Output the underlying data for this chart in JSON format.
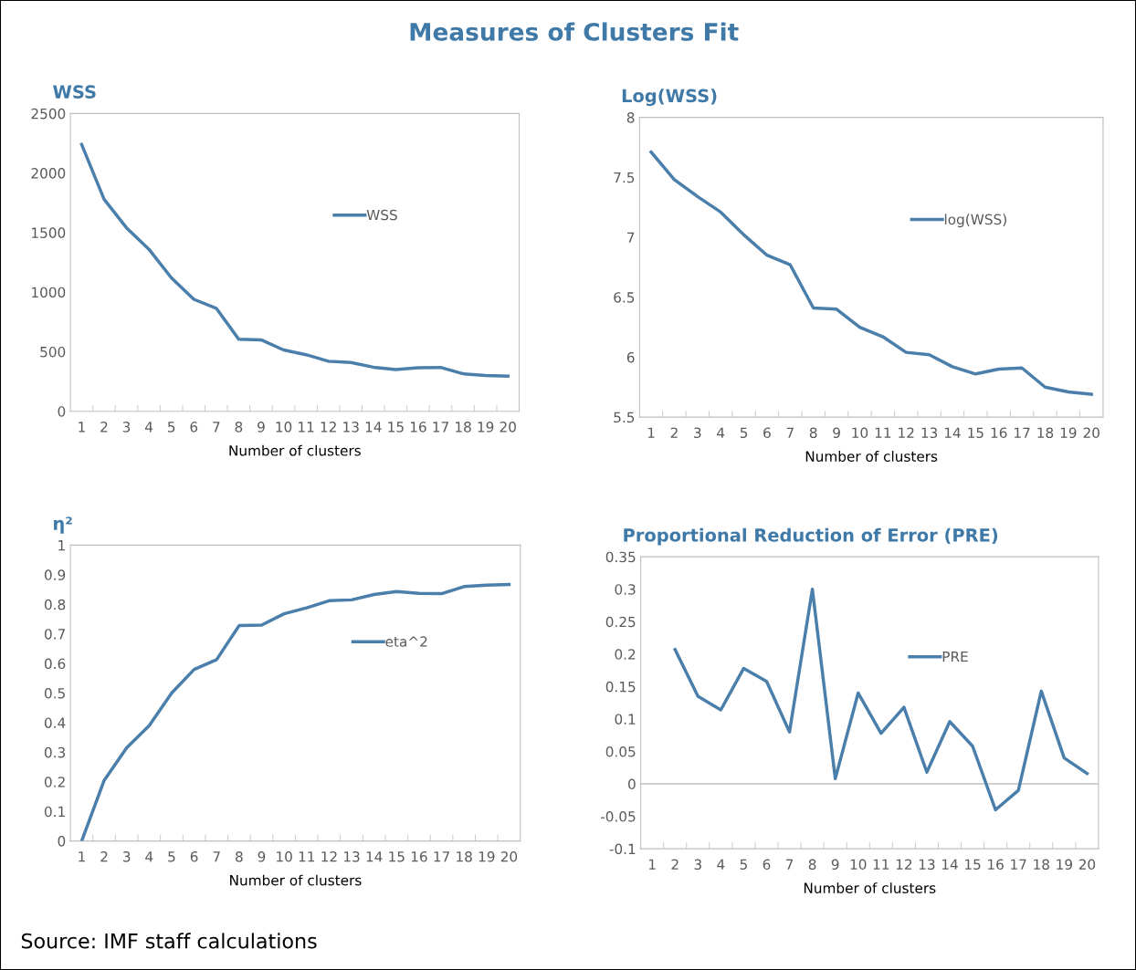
{
  "chart_data": [
    {
      "type": "other",
      "title": "Measures of Clusters Fit",
      "annotations": [
        "Source: IMF staff calculations"
      ]
    },
    {
      "type": "line",
      "title": "WSS",
      "xlabel": "Number of clusters",
      "categories": [
        "1",
        "2",
        "3",
        "4",
        "5",
        "6",
        "7",
        "8",
        "9",
        "10",
        "11",
        "12",
        "13",
        "14",
        "15",
        "16",
        "17",
        "18",
        "19",
        "20"
      ],
      "series": [
        {
          "name": "WSS",
          "color": "#4a7eab",
          "values": [
            2240,
            1780,
            1540,
            1360,
            1120,
            940,
            865,
            605,
            600,
            515,
            475,
            420,
            410,
            370,
            350,
            365,
            368,
            315,
            300,
            295
          ]
        }
      ],
      "ylim": [
        0,
        2500
      ],
      "yticks": [
        0,
        500,
        1000,
        1500,
        2000,
        2500
      ],
      "grid": false,
      "legend": "right",
      "marker": "none",
      "line_style": "solid"
    },
    {
      "type": "line",
      "title": "Log(WSS)",
      "xlabel": "Number of clusters",
      "categories": [
        "1",
        "2",
        "3",
        "4",
        "5",
        "6",
        "7",
        "8",
        "9",
        "10",
        "11",
        "12",
        "13",
        "14",
        "15",
        "16",
        "17",
        "18",
        "19",
        "20"
      ],
      "series": [
        {
          "name": "log(WSS)",
          "color": "#4a7eab",
          "values": [
            7.71,
            7.48,
            7.34,
            7.21,
            7.02,
            6.85,
            6.77,
            6.41,
            6.4,
            6.25,
            6.17,
            6.04,
            6.02,
            5.92,
            5.86,
            5.9,
            5.91,
            5.75,
            5.71,
            5.69
          ]
        }
      ],
      "ylim": [
        5.5,
        8
      ],
      "yticks": [
        5.5,
        6,
        6.5,
        7,
        7.5,
        8
      ],
      "grid": false,
      "legend": "right",
      "marker": "none",
      "line_style": "solid"
    },
    {
      "type": "line",
      "title": "η²",
      "xlabel": "Number of clusters",
      "categories": [
        "1",
        "2",
        "3",
        "4",
        "5",
        "6",
        "7",
        "8",
        "9",
        "10",
        "11",
        "12",
        "13",
        "14",
        "15",
        "16",
        "17",
        "18",
        "19",
        "20"
      ],
      "series": [
        {
          "name": "eta^2",
          "color": "#4a7eab",
          "values": [
            0,
            0.205,
            0.315,
            0.39,
            0.5,
            0.58,
            0.613,
            0.728,
            0.73,
            0.768,
            0.788,
            0.812,
            0.815,
            0.833,
            0.843,
            0.837,
            0.836,
            0.86,
            0.865,
            0.867
          ]
        }
      ],
      "ylim": [
        0,
        1
      ],
      "yticks": [
        0,
        0.1,
        0.2,
        0.3,
        0.4,
        0.5,
        0.6,
        0.7,
        0.8,
        0.9,
        1
      ],
      "grid": false,
      "legend": "center",
      "marker": "none",
      "line_style": "solid"
    },
    {
      "type": "line",
      "title": "Proportional Reduction of Error (PRE)",
      "xlabel": "Number of clusters",
      "categories": [
        "1",
        "2",
        "3",
        "4",
        "5",
        "6",
        "7",
        "8",
        "9",
        "10",
        "11",
        "12",
        "13",
        "14",
        "15",
        "16",
        "17",
        "18",
        "19",
        "20"
      ],
      "series": [
        {
          "name": "PRE",
          "color": "#4a7eab",
          "values": [
            null,
            0.207,
            0.135,
            0.114,
            0.178,
            0.158,
            0.08,
            0.3,
            0.008,
            0.14,
            0.078,
            0.118,
            0.018,
            0.096,
            0.058,
            -0.04,
            -0.01,
            0.143,
            0.04,
            0.016
          ]
        }
      ],
      "ylim": [
        -0.1,
        0.35
      ],
      "yticks": [
        -0.1,
        -0.05,
        0,
        0.05,
        0.1,
        0.15,
        0.2,
        0.25,
        0.3,
        0.35
      ],
      "ref_lines": [
        {
          "axis": "y",
          "value": 0,
          "color": "#bfbfbf"
        }
      ],
      "grid": false,
      "legend": "right",
      "marker": "none",
      "line_style": "solid"
    }
  ]
}
